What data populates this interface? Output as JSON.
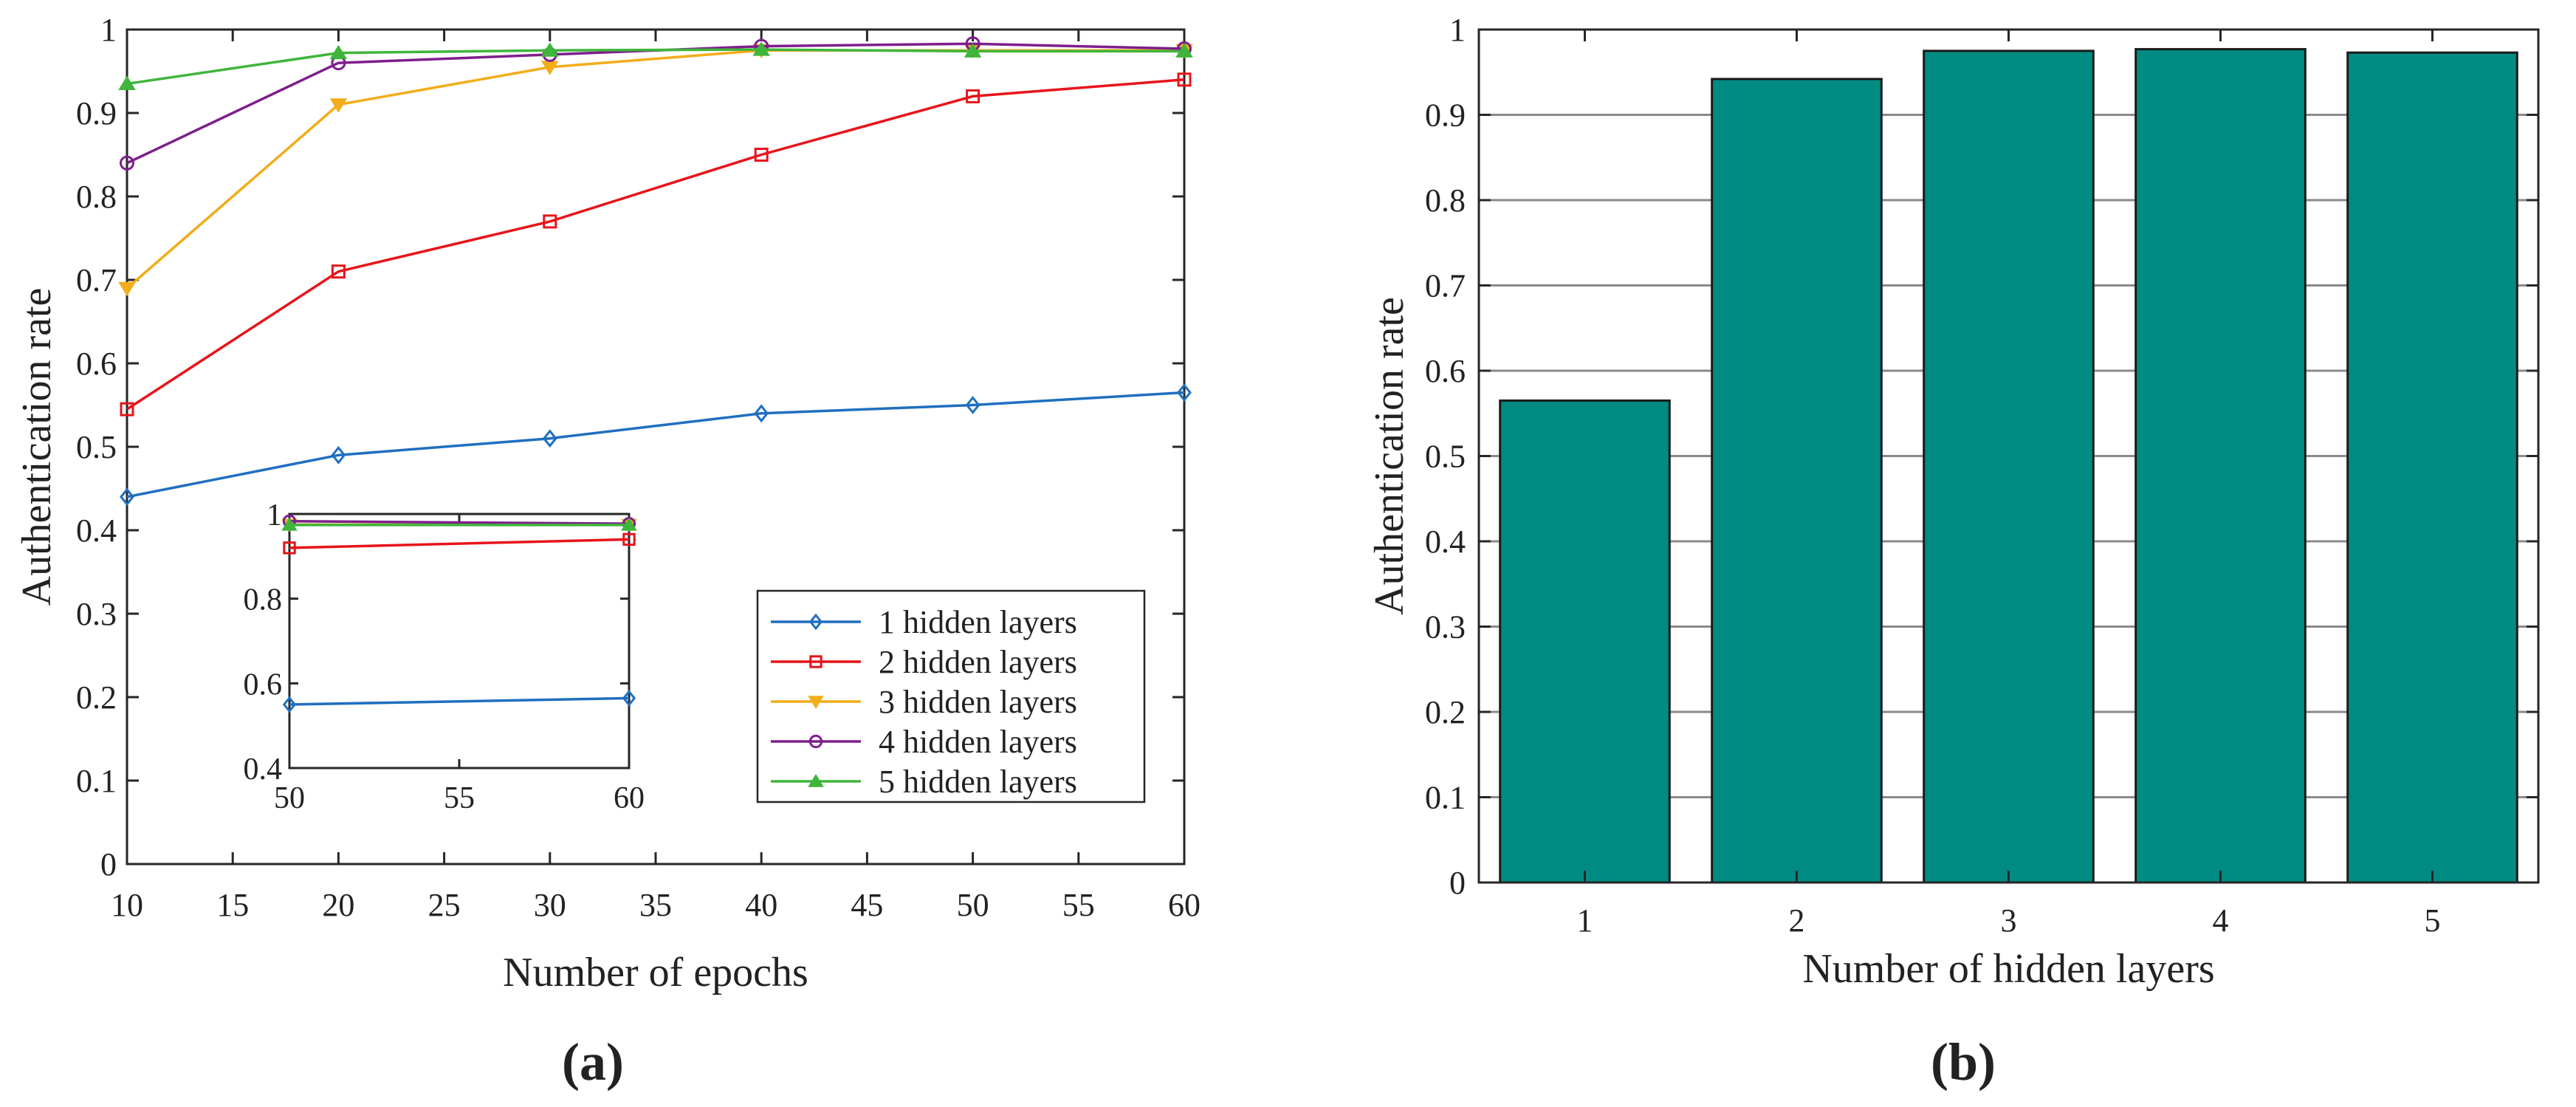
{
  "figure": {
    "panel_a_label": "(a)",
    "panel_b_label": "(b)"
  },
  "chart_data": [
    {
      "type": "line",
      "panel": "(a)",
      "xlabel": "Number of epochs",
      "ylabel": "Authentication rate",
      "x": [
        10,
        20,
        30,
        40,
        50,
        60
      ],
      "xlim": [
        10,
        60
      ],
      "ylim": [
        0,
        1
      ],
      "xticks": [
        "10",
        "15",
        "20",
        "25",
        "30",
        "35",
        "40",
        "45",
        "50",
        "55",
        "60"
      ],
      "xtick_values": [
        10,
        15,
        20,
        25,
        30,
        35,
        40,
        45,
        50,
        55,
        60
      ],
      "yticks": [
        "0",
        "0.1",
        "0.2",
        "0.3",
        "0.4",
        "0.5",
        "0.6",
        "0.7",
        "0.8",
        "0.9",
        "1"
      ],
      "ytick_values": [
        0,
        0.1,
        0.2,
        0.3,
        0.4,
        0.5,
        0.6,
        0.7,
        0.8,
        0.9,
        1.0
      ],
      "grid": false,
      "legend_position": "lower-right",
      "series": [
        {
          "name": "1 hidden layers",
          "color": "#1f6fc0",
          "marker": "diamond",
          "values": [
            0.44,
            0.49,
            0.51,
            0.54,
            0.55,
            0.565
          ]
        },
        {
          "name": "2 hidden layers",
          "color": "#e8141b",
          "marker": "square",
          "values": [
            0.545,
            0.71,
            0.77,
            0.85,
            0.92,
            0.94
          ]
        },
        {
          "name": "3 hidden layers",
          "color": "#f2ad1a",
          "marker": "triangle-down",
          "values": [
            0.69,
            0.91,
            0.955,
            0.975,
            0.975,
            0.975
          ]
        },
        {
          "name": "4 hidden layers",
          "color": "#7e1e8c",
          "marker": "circle",
          "values": [
            0.84,
            0.96,
            0.97,
            0.98,
            0.983,
            0.977
          ]
        },
        {
          "name": "5 hidden layers",
          "color": "#3fb53b",
          "marker": "triangle-up",
          "values": [
            0.935,
            0.972,
            0.975,
            0.976,
            0.974,
            0.974
          ]
        }
      ],
      "inset": {
        "x": [
          50,
          60
        ],
        "xlim": [
          50,
          60
        ],
        "ylim": [
          0.4,
          1.0
        ],
        "xticks": [
          "50",
          "55",
          "60"
        ],
        "xtick_values": [
          50,
          55,
          60
        ],
        "yticks": [
          "0.4",
          "0.6",
          "0.8",
          "1"
        ],
        "ytick_values": [
          0.4,
          0.6,
          0.8,
          1.0
        ],
        "series": [
          {
            "name": "1 hidden layers",
            "values": [
              0.55,
              0.565
            ]
          },
          {
            "name": "2 hidden layers",
            "values": [
              0.92,
              0.94
            ]
          },
          {
            "name": "3 hidden layers",
            "values": [
              0.975,
              0.975
            ]
          },
          {
            "name": "4 hidden layers",
            "values": [
              0.983,
              0.977
            ]
          },
          {
            "name": "5 hidden layers",
            "values": [
              0.974,
              0.974
            ]
          }
        ]
      }
    },
    {
      "type": "bar",
      "panel": "(b)",
      "xlabel": "Number of hidden layers",
      "ylabel": "Authentication rate",
      "categories": [
        "1",
        "2",
        "3",
        "4",
        "5"
      ],
      "values": [
        0.565,
        0.942,
        0.975,
        0.977,
        0.973
      ],
      "ylim": [
        0,
        1
      ],
      "yticks": [
        "0",
        "0.1",
        "0.2",
        "0.3",
        "0.4",
        "0.5",
        "0.6",
        "0.7",
        "0.8",
        "0.9",
        "1"
      ],
      "ytick_values": [
        0,
        0.1,
        0.2,
        0.3,
        0.4,
        0.5,
        0.6,
        0.7,
        0.8,
        0.9,
        1.0
      ],
      "grid": true,
      "bar_color": "#008b82"
    }
  ]
}
